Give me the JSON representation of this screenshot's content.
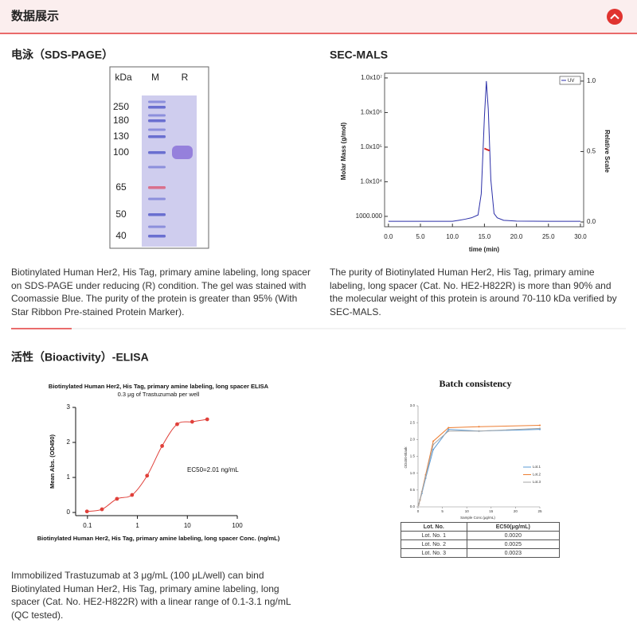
{
  "header": {
    "title": "数据展示"
  },
  "sds_page": {
    "title": "电泳（SDS-PAGE）",
    "gel": {
      "column_labels": [
        "kDa",
        "M",
        "R"
      ],
      "marker_kda": [
        250,
        180,
        130,
        100,
        65,
        50,
        40
      ]
    },
    "caption": "Biotinylated Human Her2, His Tag, primary amine labeling, long spacer on SDS-PAGE under reducing (R) condition. The gel was stained with Coomassie Blue. The purity of the protein is greater than 95% (With Star Ribbon Pre-stained Protein Marker)."
  },
  "sec_mals": {
    "title": "SEC-MALS",
    "caption": "The purity of Biotinylated Human Her2, His Tag, primary amine labeling, long spacer (Cat. No. HE2-H822R) is more than 90% and the molecular weight of this protein is around 70-110 kDa verified by SEC-MALS.",
    "chart_data": {
      "type": "line",
      "xlabel": "time (min)",
      "ylabel": "Molar Mass (g/mol)",
      "y2label": "Relative Scale",
      "log_y": true,
      "legend": "upper right",
      "xlim": [
        -0.6,
        30.5
      ],
      "xticks": [
        {
          "value": 0,
          "label": "0.0"
        },
        {
          "value": 5,
          "label": "5.0"
        },
        {
          "value": 10,
          "label": "10.0"
        },
        {
          "value": 15,
          "label": "15.0"
        },
        {
          "value": 20,
          "label": "20.0"
        },
        {
          "value": 25,
          "label": "25.0"
        },
        {
          "value": 30,
          "label": "30.0"
        }
      ],
      "ylim": [
        500,
        13700000
      ],
      "yticks": [
        {
          "value": 1000,
          "label": "1000.000"
        },
        {
          "value": 10000,
          "label": "1.0x10⁴"
        },
        {
          "value": 100000,
          "label": "1.0x10⁵"
        },
        {
          "value": 1000000,
          "label": "1.0x10⁶"
        },
        {
          "value": 10000000,
          "label": "1.0x10⁷"
        }
      ],
      "y2lim": [
        -0.034,
        1.056
      ],
      "y2ticks": [
        {
          "value": 0,
          "label": "0.0"
        },
        {
          "value": 0.5,
          "label": "0.5"
        },
        {
          "value": 1,
          "label": "1.0"
        }
      ],
      "series": [
        {
          "name": "UV",
          "color": "#2b2fa8",
          "axis": "y2",
          "x": [
            0,
            5,
            10,
            11,
            12,
            13,
            14,
            14.5,
            15,
            15.3,
            15.6,
            16,
            16.5,
            17,
            18,
            20,
            25,
            30
          ],
          "values": [
            0.005,
            0.005,
            0.005,
            0.012,
            0.02,
            0.03,
            0.05,
            0.2,
            0.75,
            1.0,
            0.8,
            0.3,
            0.06,
            0.03,
            0.012,
            0.006,
            0.005,
            0.005
          ]
        },
        {
          "color": "#d62020",
          "x": [
            15.0,
            15.2,
            15.4,
            15.6,
            15.8
          ],
          "values": [
            92000,
            88000,
            85000,
            82000,
            80000
          ]
        }
      ]
    }
  },
  "elisa": {
    "title": "活性（Bioactivity）-ELISA",
    "caption": "Immobilized Trastuzumab at 3 μg/mL (100 μL/well) can bind Biotinylated Human Her2, His Tag, primary amine labeling, long spacer (Cat. No. HE2-H822R) with a linear range of 0.1-3.1 ng/mL (QC tested).",
    "chart_data": {
      "type": "scatter",
      "title": "Biotinylated Human Her2, His Tag, primary amine labeling, long spacer ELISA",
      "subtitle": "0.3 μg of Trastuzumab per well",
      "xlabel": "Biotinylated Human Her2, His Tag, primary amine labeling, long spacer Conc. (ng/mL)",
      "ylabel": "Mean Abs. (OD450)",
      "annotation": "EC50=2.01 ng/mL",
      "log_x": true,
      "xlim": [
        0.058,
        100
      ],
      "xticks": [
        0.1,
        1,
        10,
        100
      ],
      "ylim": [
        -0.09,
        3
      ],
      "yticks": [
        0,
        1,
        2,
        3
      ],
      "color": "#e0403a",
      "x": [
        0.0977,
        0.195,
        0.39,
        0.781,
        1.563,
        3.125,
        6.25,
        12.5,
        25
      ],
      "values": [
        0.03,
        0.09,
        0.39,
        0.5,
        1.05,
        1.9,
        2.52,
        2.59,
        2.66
      ]
    }
  },
  "batch": {
    "chart_data": {
      "type": "line",
      "title": "Batch consistency",
      "xlabel": "Sample Conc.(μg/mL)",
      "ylabel": "OD450-Blank",
      "legend": "center right",
      "xlim": [
        0,
        25
      ],
      "xticks": [
        0,
        5,
        10,
        15,
        20,
        25
      ],
      "ylim": [
        0,
        3
      ],
      "yticks": [
        {
          "value": 0,
          "label": "0.0"
        },
        {
          "value": 0.5,
          "label": "0.5"
        },
        {
          "value": 1,
          "label": "1.0"
        },
        {
          "value": 1.5,
          "label": "1.5"
        },
        {
          "value": 2,
          "label": "2.0"
        },
        {
          "value": 2.5,
          "label": "2.5"
        },
        {
          "value": 3,
          "label": "3.0"
        }
      ],
      "x": [
        0.098,
        0.195,
        0.39,
        0.78,
        1.56,
        3.125,
        6.25,
        12.5,
        25
      ],
      "series": [
        {
          "name": "Lot.1",
          "color": "#5b9bd5",
          "values": [
            0.05,
            0.1,
            0.2,
            0.4,
            0.85,
            1.7,
            2.3,
            2.25,
            2.3
          ]
        },
        {
          "name": "Lot.2",
          "color": "#ed7d31",
          "values": [
            0.05,
            0.1,
            0.2,
            0.45,
            0.95,
            1.95,
            2.35,
            2.38,
            2.42
          ]
        },
        {
          "name": "Lot.3",
          "color": "#a5a5a5",
          "values": [
            0.05,
            0.1,
            0.22,
            0.45,
            0.9,
            1.85,
            2.25,
            2.25,
            2.33
          ]
        }
      ]
    },
    "table": {
      "columns": [
        "Lot. No.",
        "EC50(μg/mL)"
      ],
      "rows": [
        [
          "Lot. No. 1",
          "0.0020"
        ],
        [
          "Lot. No. 2",
          "0.0025"
        ],
        [
          "Lot. No. 3",
          "0.0023"
        ]
      ]
    }
  }
}
